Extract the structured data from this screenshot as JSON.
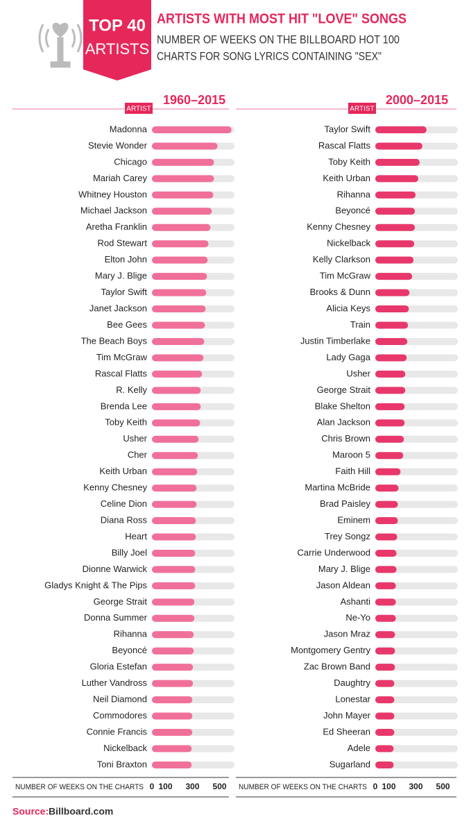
{
  "header": {
    "badge_top": "TOP 40",
    "badge_bottom": "ARTISTS",
    "title": "ARTISTS WITH MOST HIT \"LOVE\" SONGS",
    "subtitle": [
      "NUMBER OF WEEKS ON THE BILLBOARD HOT 100",
      "CHARTS FOR SONG LYRICS CONTAINING \"SEX\""
    ]
  },
  "source_label": "Source:",
  "source": "Billboard.com",
  "chart_data": [
    {
      "type": "bar",
      "orientation": "horizontal",
      "title": "1960–2015",
      "category_header": "ARTIST",
      "x_label": "NUMBER OF WEEKS ON THE CHARTS",
      "color": "#f0709a",
      "categories": [
        "Madonna",
        "Stevie Wonder",
        "Chicago",
        "Mariah Carey",
        "Whitney Houston",
        "Michael Jackson",
        "Aretha Franklin",
        "Rod Stewart",
        "Elton John",
        "Mary J. Blige",
        "Taylor Swift",
        "Janet Jackson",
        "Bee Gees",
        "The Beach Boys",
        "Tim McGraw",
        "Rascal Flatts",
        "R. Kelly",
        "Brenda Lee",
        "Toby Keith",
        "Usher",
        "Cher",
        "Keith Urban",
        "Kenny Chesney",
        "Celine Dion",
        "Diana Ross",
        "Heart",
        "Billy Joel",
        "Dionne Warwick",
        "Gladys Knight & The Pips",
        "George Strait",
        "Donna Summer",
        "Rihanna",
        "Beyoncé",
        "Gloria Estefan",
        "Luther Vandross",
        "Neil Diamond",
        "Commodores",
        "Connie Francis",
        "Nickelback",
        "Toni Braxton"
      ],
      "values": [
        588,
        485,
        459,
        459,
        454,
        443,
        433,
        418,
        412,
        407,
        402,
        397,
        392,
        387,
        381,
        371,
        361,
        361,
        356,
        345,
        340,
        335,
        330,
        330,
        325,
        325,
        320,
        320,
        320,
        314,
        314,
        309,
        309,
        304,
        304,
        299,
        299,
        299,
        294,
        294
      ],
      "xlim": [
        0,
        610
      ],
      "xticks": [
        0,
        100,
        300,
        500
      ]
    },
    {
      "type": "bar",
      "orientation": "horizontal",
      "title": "2000–2015",
      "category_header": "ARTIST",
      "x_label": "NUMBER OF WEEKS ON THE CHARTS",
      "color": "#e8386b",
      "categories": [
        "Taylor Swift",
        "Rascal Flatts",
        "Toby Keith",
        "Keith Urban",
        "Rihanna",
        "Beyoncé",
        "Kenny Chesney",
        "Nickelback",
        "Kelly Clarkson",
        "Tim McGraw",
        "Brooks & Dunn",
        "Alicia Keys",
        "Train",
        "Justin Timberlake",
        "Lady Gaga",
        "Usher",
        "George Strait",
        "Blake Shelton",
        "Alan Jackson",
        "Chris Brown",
        "Maroon 5",
        "Faith Hill",
        "Martina McBride",
        "Brad Paisley",
        "Eminem",
        "Trey Songz",
        "Carrie Underwood",
        "Mary J. Blige",
        "Jason Aldean",
        "Ashanti",
        "Ne-Yo",
        "Jason Mraz",
        "Montgomery Gentry",
        "Zac Brown Band",
        "Daughtry",
        "Lonestar",
        "John Mayer",
        "Ed Sheeran",
        "Adele",
        "Sugarland"
      ],
      "values": [
        379,
        348,
        328,
        318,
        298,
        293,
        293,
        288,
        283,
        273,
        253,
        248,
        242,
        237,
        232,
        222,
        222,
        217,
        217,
        212,
        207,
        187,
        172,
        167,
        167,
        162,
        157,
        157,
        152,
        152,
        152,
        146,
        146,
        146,
        141,
        141,
        141,
        141,
        136,
        136
      ],
      "xlim": [
        0,
        610
      ],
      "xticks": [
        0,
        100,
        300,
        500
      ]
    }
  ]
}
